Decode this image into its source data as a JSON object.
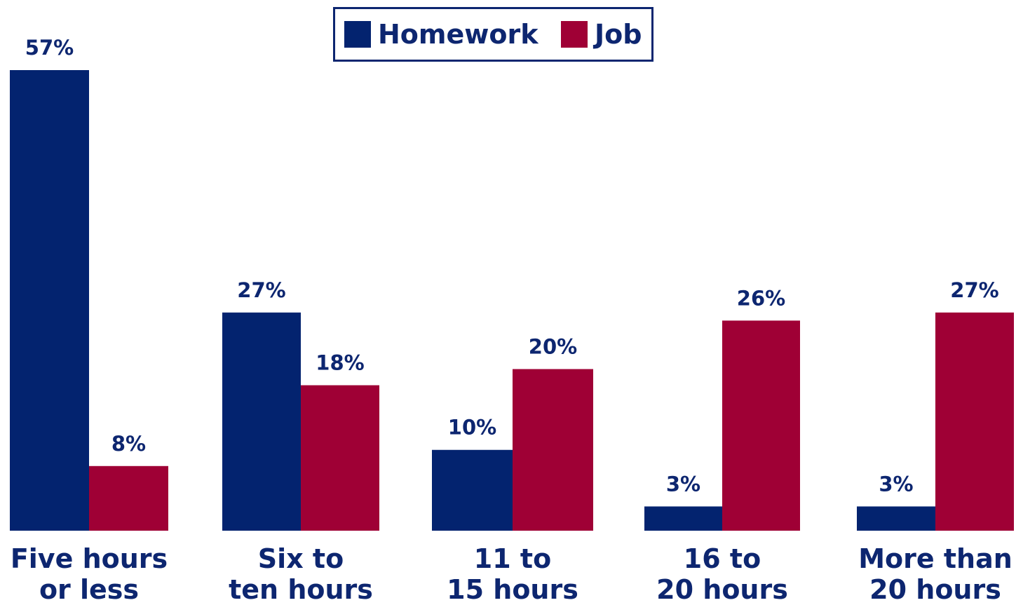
{
  "chart_data": {
    "type": "bar",
    "title": "",
    "xlabel": "",
    "ylabel": "",
    "categories": [
      [
        "Five hours",
        "or less"
      ],
      [
        "Six to",
        "ten hours"
      ],
      [
        "11 to",
        "15 hours"
      ],
      [
        "16 to",
        "20 hours"
      ],
      [
        "More than",
        "20 hours"
      ]
    ],
    "series": [
      {
        "name": "Homework",
        "color": "#03236f",
        "values": [
          57,
          27,
          10,
          3,
          3
        ],
        "labels": [
          "57%",
          "27%",
          "10%",
          "3%",
          "3%"
        ]
      },
      {
        "name": "Job",
        "color": "#9f0035",
        "values": [
          8,
          18,
          20,
          26,
          27
        ],
        "labels": [
          "8%",
          "18%",
          "20%",
          "26%",
          "27%"
        ]
      }
    ],
    "ylim": [
      0,
      57
    ],
    "grid": false,
    "legend_position": "top-center"
  }
}
